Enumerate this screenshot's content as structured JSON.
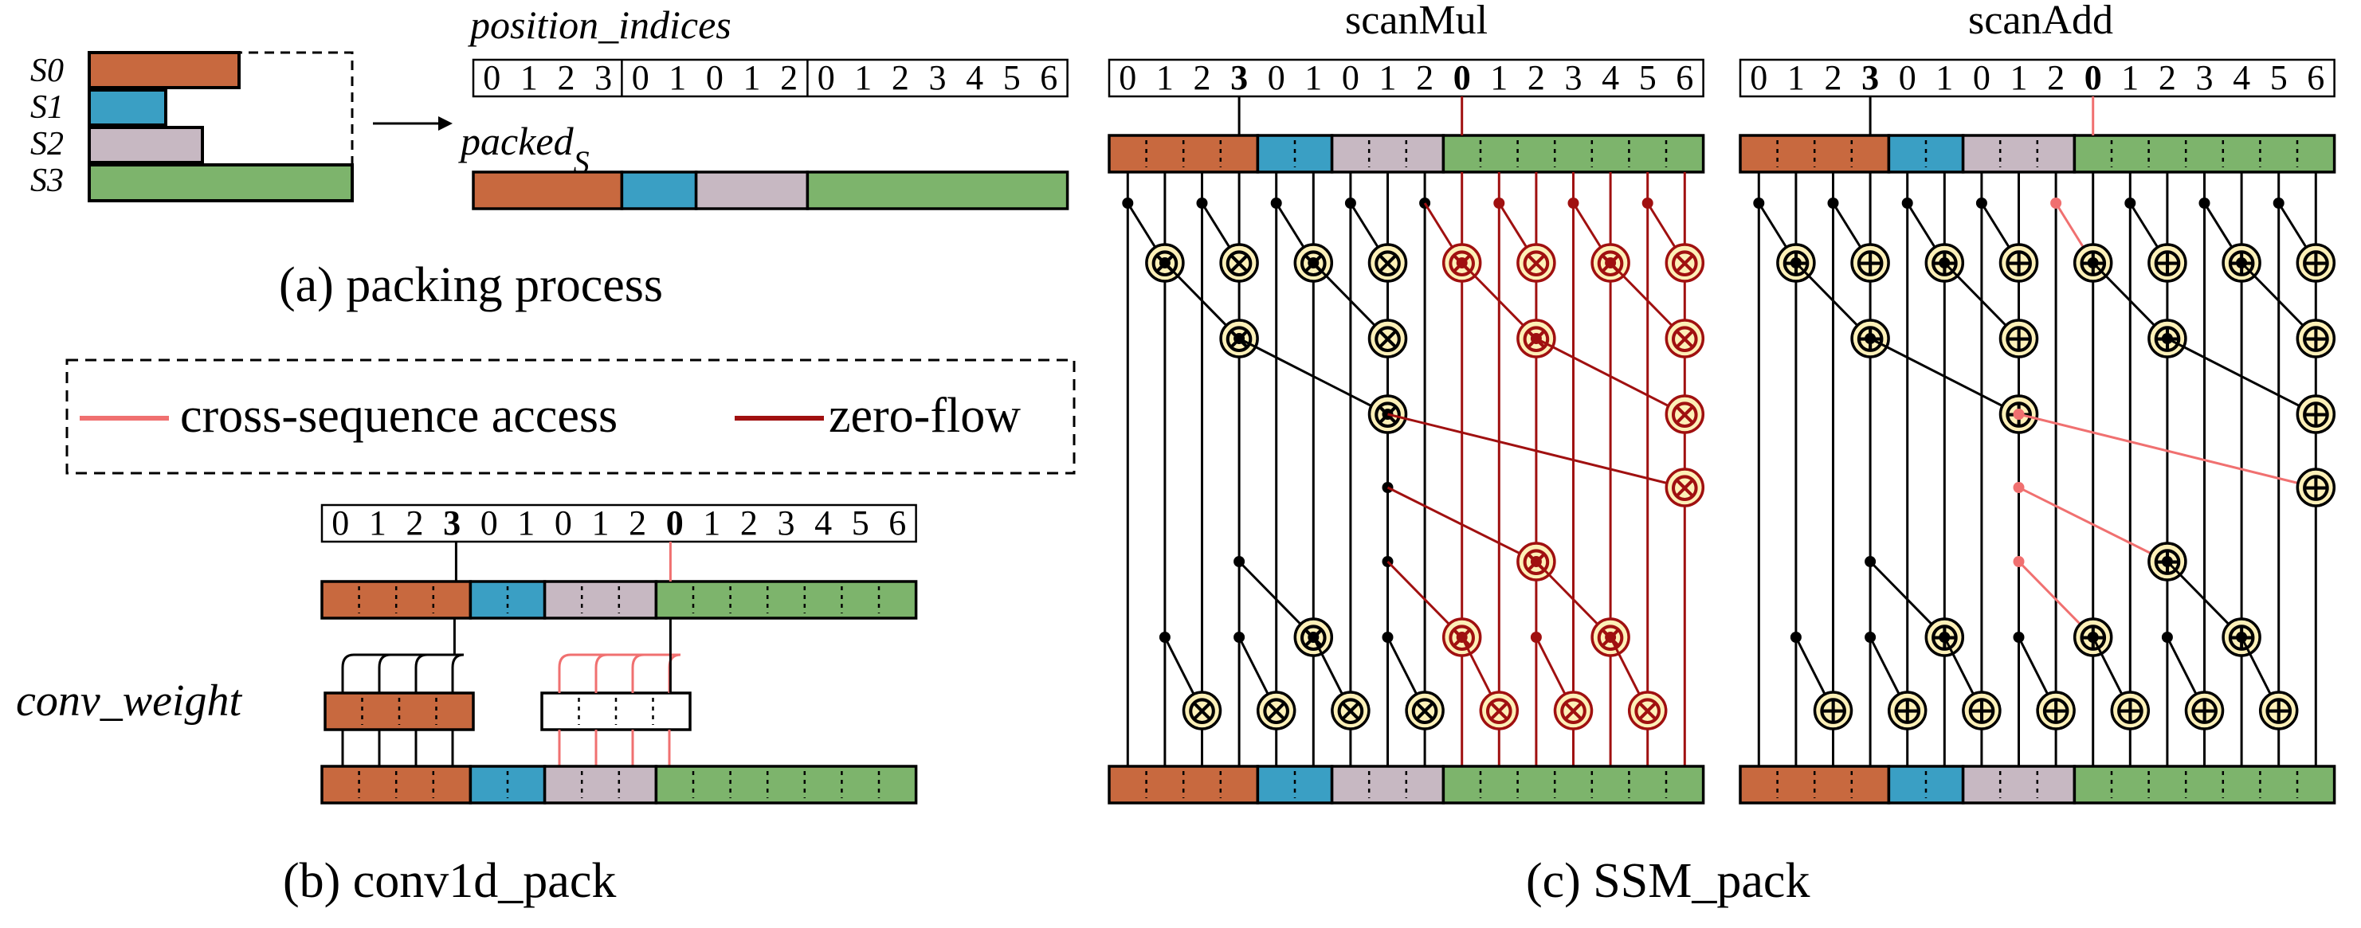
{
  "colors": {
    "s0": "#c8693f",
    "s1": "#3a9fc4",
    "s2": "#c7b8c2",
    "s3": "#7db46c",
    "cross": "#f07070",
    "zero": "#a01010",
    "node": "#fdf0b8"
  },
  "panel_a": {
    "caption": "(a) packing process",
    "seq_labels": [
      "S0",
      "S1",
      "S2",
      "S3"
    ],
    "position_label": "position_indices",
    "packed_label": "packedS",
    "indices": [
      "0",
      "1",
      "2",
      "3",
      "0",
      "1",
      "0",
      "1",
      "2",
      "0",
      "1",
      "2",
      "3",
      "4",
      "5",
      "6"
    ]
  },
  "legend": {
    "cross_label": "cross-sequence access",
    "zero_label": "zero-flow"
  },
  "panel_b": {
    "caption": "(b) conv1d_pack",
    "conv_label": "conv_weight",
    "indices": [
      "0",
      "1",
      "2",
      "3",
      "0",
      "1",
      "0",
      "1",
      "2",
      "0",
      "1",
      "2",
      "3",
      "4",
      "5",
      "6"
    ]
  },
  "panel_c": {
    "caption": "(c) SSM_pack",
    "scan_mul_title": "scanMul",
    "scan_add_title": "scanAdd",
    "indices": [
      "0",
      "1",
      "2",
      "3",
      "0",
      "1",
      "0",
      "1",
      "2",
      "0",
      "1",
      "2",
      "3",
      "4",
      "5",
      "6"
    ],
    "mul_symbol": "⊗",
    "add_symbol": "⊕"
  }
}
